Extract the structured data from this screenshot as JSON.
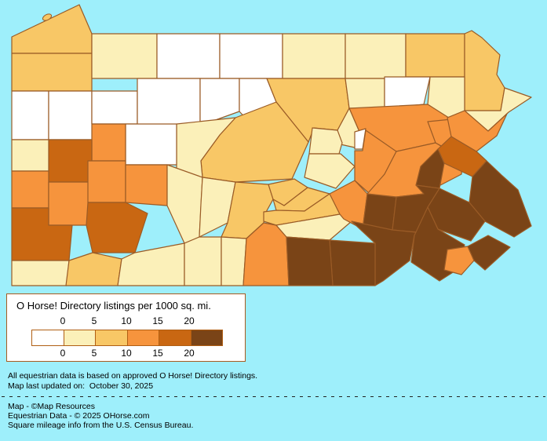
{
  "colors": {
    "background": "#9EEFFB",
    "county_border": "#9A5B26",
    "legend_box_border": "#A85B20",
    "swatch_border": "#B05F14",
    "text": "#000000"
  },
  "legend": {
    "title": "O Horse! Directory listings per 1000 sq. mi.",
    "ticks_top": [
      "0",
      "5",
      "10",
      "15",
      "20"
    ],
    "ticks_bottom": [
      "0",
      "5",
      "10",
      "15",
      "20"
    ],
    "swatch_colors": [
      "#FFFFFF",
      "#FBF0B9",
      "#F8C766",
      "#F6943D",
      "#C96712",
      "#7A4417"
    ]
  },
  "footnotes": [
    "All equestrian data is based on approved O Horse! Directory listings.",
    "Map last updated on:  October 30, 2025"
  ],
  "credits": [
    "Map - ©Map Resources",
    "Equestrian Data - © 2025 OHorse.com",
    "Square mileage info from the U.S. Census Bureau."
  ],
  "chart_data": {
    "type": "choropleth",
    "region": "Pennsylvania counties",
    "title": "O Horse! Directory listings per 1000 sq. mi.",
    "unit": "listings per 1000 sq. mi.",
    "bins": [
      "0",
      "0-5",
      "5-10",
      "10-15",
      "15-20",
      "20+"
    ],
    "bin_colors": [
      "#FFFFFF",
      "#FBF0B9",
      "#F8C766",
      "#F6943D",
      "#C96712",
      "#7A4417"
    ],
    "counties": [
      {
        "name": "Erie",
        "category": 2
      },
      {
        "name": "Crawford",
        "category": 2
      },
      {
        "name": "Warren",
        "category": 1
      },
      {
        "name": "McKean",
        "category": 0
      },
      {
        "name": "Potter",
        "category": 0
      },
      {
        "name": "Tioga",
        "category": 1
      },
      {
        "name": "Bradford",
        "category": 1
      },
      {
        "name": "Susquehanna",
        "category": 2
      },
      {
        "name": "Wayne",
        "category": 2
      },
      {
        "name": "Pike",
        "category": 1
      },
      {
        "name": "Mercer",
        "category": 0
      },
      {
        "name": "Venango",
        "category": 0
      },
      {
        "name": "Forest",
        "category": 0
      },
      {
        "name": "Elk",
        "category": 0
      },
      {
        "name": "Cameron",
        "category": 0
      },
      {
        "name": "Clinton",
        "category": 0
      },
      {
        "name": "Lycoming",
        "category": 2
      },
      {
        "name": "Sullivan",
        "category": 1
      },
      {
        "name": "Wyoming",
        "category": 0
      },
      {
        "name": "Lackawanna",
        "category": 1
      },
      {
        "name": "Luzerne",
        "category": 3
      },
      {
        "name": "Columbia",
        "category": 1
      },
      {
        "name": "Union",
        "category": 1
      },
      {
        "name": "Snyder",
        "category": 1
      },
      {
        "name": "Centre",
        "category": 2
      },
      {
        "name": "Clearfield",
        "category": 1
      },
      {
        "name": "Jefferson",
        "category": 0
      },
      {
        "name": "Clarion",
        "category": 3
      },
      {
        "name": "Butler",
        "category": 4
      },
      {
        "name": "Lawrence",
        "category": 1
      },
      {
        "name": "Beaver",
        "category": 3
      },
      {
        "name": "Allegheny",
        "category": 3
      },
      {
        "name": "Armstrong",
        "category": 3
      },
      {
        "name": "Indiana",
        "category": 3
      },
      {
        "name": "Westmoreland",
        "category": 4
      },
      {
        "name": "Washington",
        "category": 4
      },
      {
        "name": "Greene",
        "category": 1
      },
      {
        "name": "Fayette",
        "category": 2
      },
      {
        "name": "Somerset",
        "category": 1
      },
      {
        "name": "Cambria",
        "category": 1
      },
      {
        "name": "Blair",
        "category": 1
      },
      {
        "name": "Bedford",
        "category": 1
      },
      {
        "name": "Huntingdon",
        "category": 2
      },
      {
        "name": "Fulton",
        "category": 1
      },
      {
        "name": "Franklin",
        "category": 3
      },
      {
        "name": "Mifflin",
        "category": 2
      },
      {
        "name": "Juniata",
        "category": 2
      },
      {
        "name": "Perry",
        "category": 2
      },
      {
        "name": "Cumberland",
        "category": 1
      },
      {
        "name": "Dauphin",
        "category": 3
      },
      {
        "name": "Northumberland",
        "category": 3
      },
      {
        "name": "Montour",
        "category": 0
      },
      {
        "name": "Lebanon",
        "category": 5
      },
      {
        "name": "Schuylkill",
        "category": 3
      },
      {
        "name": "Carbon",
        "category": 3
      },
      {
        "name": "Monroe",
        "category": 3
      },
      {
        "name": "Northampton",
        "category": 4
      },
      {
        "name": "Lehigh",
        "category": 5
      },
      {
        "name": "Berks",
        "category": 5
      },
      {
        "name": "Bucks",
        "category": 5
      },
      {
        "name": "Montgomery",
        "category": 5
      },
      {
        "name": "Lancaster",
        "category": 5
      },
      {
        "name": "York",
        "category": 5
      },
      {
        "name": "Adams",
        "category": 5
      },
      {
        "name": "Chester",
        "category": 5
      },
      {
        "name": "Delaware",
        "category": 3
      },
      {
        "name": "Philadelphia",
        "category": 5
      }
    ]
  }
}
